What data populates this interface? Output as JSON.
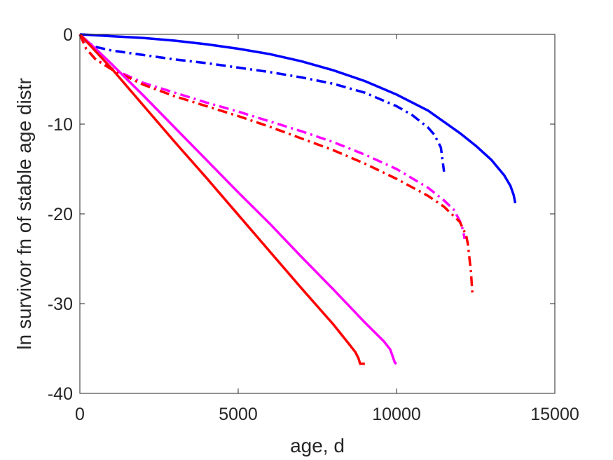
{
  "chart_data": {
    "type": "line",
    "title": "",
    "xlabel": "age, d",
    "ylabel": "ln survivor fn of stable age distr",
    "xlim": [
      0,
      15000
    ],
    "ylim": [
      -40,
      0
    ],
    "xticks": [
      0,
      5000,
      10000,
      15000
    ],
    "yticks": [
      0,
      -10,
      -20,
      -30,
      -40
    ],
    "xtick_labels": [
      "0",
      "5000",
      "10000",
      "15000"
    ],
    "ytick_labels": [
      "0",
      "-10",
      "-20",
      "-30",
      "-40"
    ],
    "grid": false,
    "legend": "none",
    "series": [
      {
        "color": "#0000ff",
        "style": "solid",
        "x": [
          0,
          1000,
          2000,
          3000,
          4000,
          5000,
          6000,
          7000,
          8000,
          9000,
          10000,
          11000,
          12000,
          12500,
          13000,
          13400,
          13600,
          13700,
          13750
        ],
        "y": [
          0,
          -0.2,
          -0.4,
          -0.7,
          -1.1,
          -1.6,
          -2.2,
          -3.0,
          -4.0,
          -5.2,
          -6.7,
          -8.5,
          -11.0,
          -12.4,
          -14.0,
          -15.7,
          -16.9,
          -17.9,
          -18.8
        ]
      },
      {
        "color": "#0000ff",
        "style": "dashdot",
        "x": [
          0,
          200,
          500,
          1000,
          2000,
          3000,
          4000,
          5000,
          6000,
          7000,
          8000,
          9000,
          10000,
          10500,
          11000,
          11200,
          11400,
          11500
        ],
        "y": [
          0,
          -0.8,
          -1.4,
          -1.8,
          -2.3,
          -2.8,
          -3.2,
          -3.7,
          -4.2,
          -4.8,
          -5.5,
          -6.5,
          -8.0,
          -9.0,
          -10.4,
          -11.2,
          -12.6,
          -15.3
        ]
      },
      {
        "color": "#ff00ff",
        "style": "dashdot",
        "x": [
          0,
          200,
          500,
          1000,
          2000,
          3000,
          4000,
          5000,
          6000,
          7000,
          8000,
          9000,
          10000,
          11000,
          11500,
          11800,
          12000,
          12100,
          12150
        ],
        "y": [
          0,
          -1.6,
          -2.8,
          -3.8,
          -5.4,
          -6.5,
          -7.6,
          -8.6,
          -9.7,
          -10.8,
          -12.0,
          -13.4,
          -15.0,
          -17.1,
          -18.5,
          -19.5,
          -20.8,
          -21.8,
          -22.8
        ]
      },
      {
        "color": "#ff0000",
        "style": "dashdot",
        "x": [
          0,
          200,
          500,
          1000,
          2000,
          3000,
          4000,
          5000,
          6000,
          7000,
          8000,
          9000,
          10000,
          11000,
          11500,
          12000,
          12200,
          12250,
          12350,
          12400
        ],
        "y": [
          0,
          -1.6,
          -2.8,
          -3.9,
          -5.6,
          -6.9,
          -8.0,
          -9.1,
          -10.3,
          -11.6,
          -12.9,
          -14.4,
          -16.1,
          -18.0,
          -19.2,
          -20.9,
          -22.4,
          -23.3,
          -26.4,
          -29.1
        ]
      },
      {
        "color": "#ff00ff",
        "style": "solid",
        "x": [
          0,
          500,
          1000,
          2000,
          3000,
          4000,
          5000,
          6000,
          7000,
          8000,
          9000,
          9600,
          9800,
          9900,
          9950,
          10000
        ],
        "y": [
          0,
          -1.6,
          -3.3,
          -6.8,
          -10.4,
          -14.0,
          -17.6,
          -21.1,
          -24.8,
          -28.4,
          -32.1,
          -34.2,
          -35.1,
          -36.1,
          -36.6,
          -36.7
        ]
      },
      {
        "color": "#ff0000",
        "style": "solid",
        "x": [
          0,
          500,
          1000,
          2000,
          3000,
          4000,
          5000,
          6000,
          7000,
          8000,
          8500,
          8700,
          8800,
          8850,
          9000
        ],
        "y": [
          0,
          -1.9,
          -3.8,
          -7.9,
          -12.0,
          -16.0,
          -20.1,
          -24.2,
          -28.3,
          -32.3,
          -34.5,
          -35.4,
          -36.1,
          -36.7,
          -36.7
        ]
      }
    ]
  }
}
